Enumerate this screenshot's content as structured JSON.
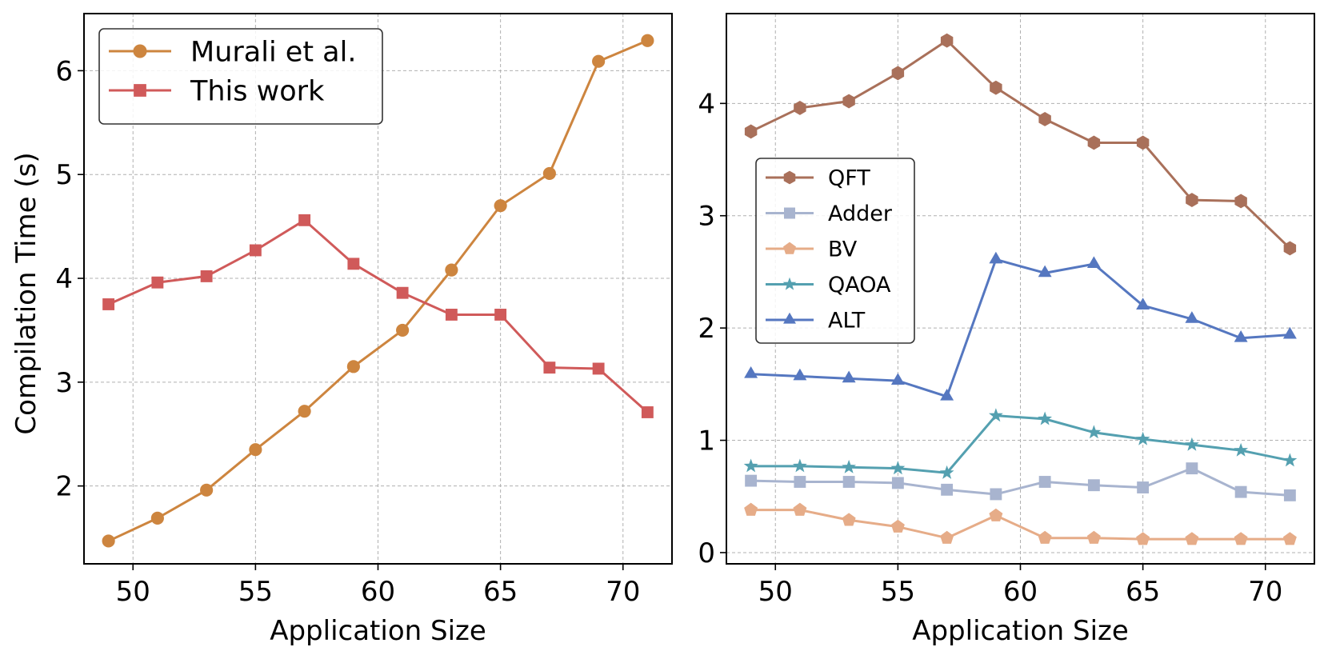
{
  "colors": {
    "murali": "#cd853f",
    "this_work": "#d05a5a",
    "qft": "#a9705a",
    "adder": "#a8b4cf",
    "bv": "#e6ac88",
    "qaoa": "#54a0b0",
    "alt": "#5577c0"
  },
  "chart_data": [
    {
      "type": "line",
      "title": "",
      "xlabel": "Application Size",
      "ylabel": "Compilation Time (s)",
      "xlim": [
        48,
        72
      ],
      "ylim": [
        1.25,
        6.55
      ],
      "xticks": [
        50,
        55,
        60,
        65,
        70
      ],
      "yticks": [
        2,
        3,
        4,
        5,
        6
      ],
      "x": [
        49,
        51,
        53,
        55,
        57,
        59,
        61,
        63,
        65,
        67,
        69,
        71
      ],
      "legend_position": "top-left",
      "series": [
        {
          "name": "Murali et al.",
          "key": "murali",
          "marker": "circle",
          "values": [
            1.47,
            1.69,
            1.96,
            2.35,
            2.72,
            3.15,
            3.5,
            4.08,
            4.7,
            5.01,
            6.09,
            6.29
          ]
        },
        {
          "name": "This work",
          "key": "this_work",
          "marker": "square",
          "values": [
            3.75,
            3.96,
            4.02,
            4.27,
            4.56,
            4.14,
            3.86,
            3.65,
            3.65,
            3.14,
            3.13,
            2.71
          ]
        }
      ]
    },
    {
      "type": "line",
      "title": "",
      "xlabel": "Application Size",
      "ylabel": "",
      "xlim": [
        48,
        72
      ],
      "ylim": [
        -0.1,
        4.8
      ],
      "xticks": [
        50,
        55,
        60,
        65,
        70
      ],
      "yticks": [
        0,
        1,
        2,
        3,
        4
      ],
      "x": [
        49,
        51,
        53,
        55,
        57,
        59,
        61,
        63,
        65,
        67,
        69,
        71
      ],
      "legend_position": "center-left",
      "series": [
        {
          "name": "QFT",
          "key": "qft",
          "marker": "hexagon",
          "values": [
            3.75,
            3.96,
            4.02,
            4.27,
            4.56,
            4.14,
            3.86,
            3.65,
            3.65,
            3.14,
            3.13,
            2.71
          ]
        },
        {
          "name": "Adder",
          "key": "adder",
          "marker": "square",
          "values": [
            0.64,
            0.63,
            0.63,
            0.62,
            0.56,
            0.52,
            0.63,
            0.6,
            0.58,
            0.75,
            0.54,
            0.51
          ]
        },
        {
          "name": "BV",
          "key": "bv",
          "marker": "pentagon",
          "values": [
            0.38,
            0.38,
            0.29,
            0.23,
            0.13,
            0.33,
            0.13,
            0.13,
            0.12,
            0.12,
            0.12,
            0.12
          ]
        },
        {
          "name": "QAOA",
          "key": "qaoa",
          "marker": "star",
          "values": [
            0.77,
            0.77,
            0.76,
            0.75,
            0.71,
            1.22,
            1.19,
            1.07,
            1.01,
            0.96,
            0.91,
            0.82
          ]
        },
        {
          "name": "ALT",
          "key": "alt",
          "marker": "triangle",
          "values": [
            1.59,
            1.57,
            1.55,
            1.53,
            1.39,
            2.61,
            2.49,
            2.57,
            2.2,
            2.08,
            1.91,
            1.94
          ]
        }
      ]
    }
  ]
}
